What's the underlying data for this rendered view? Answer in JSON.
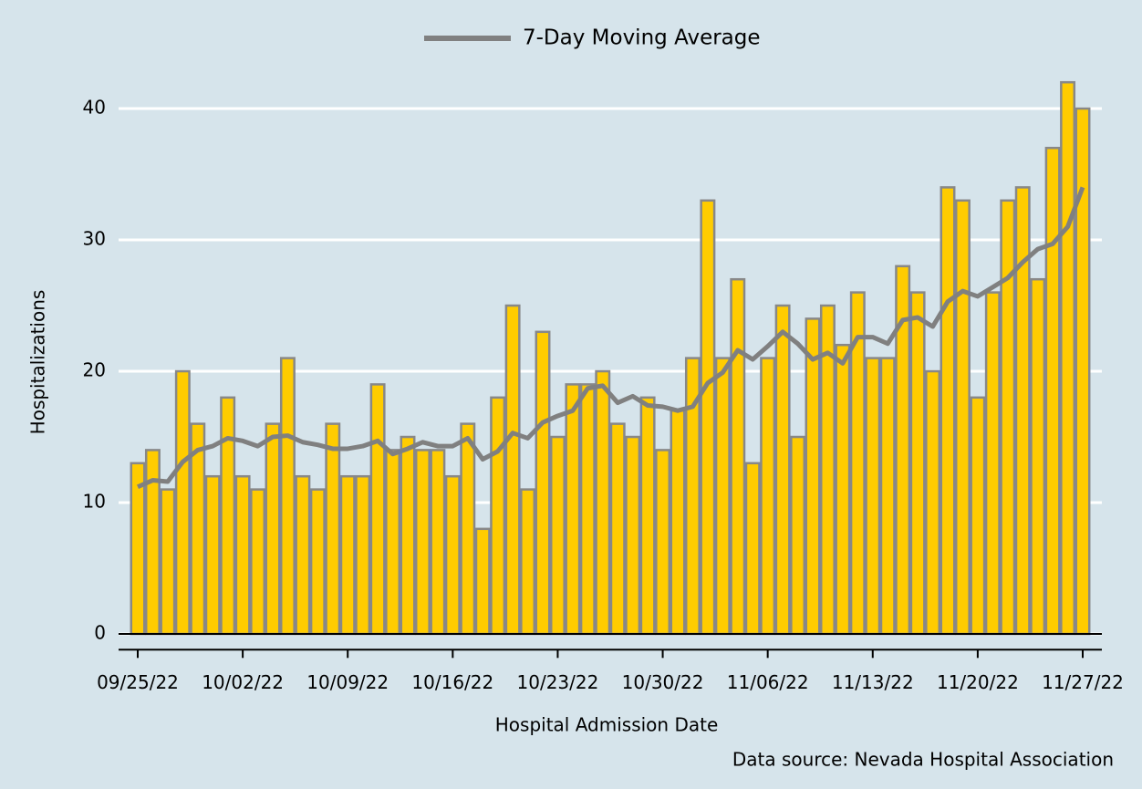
{
  "chart_data": {
    "type": "bar",
    "y_label": "Hospitalizations",
    "x_label": "Hospital Admission Date",
    "source": "Data source: Nevada Hospital Association",
    "categories": [
      "09/25/22",
      null,
      null,
      null,
      null,
      null,
      null,
      "10/02/22",
      null,
      null,
      null,
      null,
      null,
      null,
      "10/09/22",
      null,
      null,
      null,
      null,
      null,
      null,
      "10/16/22",
      null,
      null,
      null,
      null,
      null,
      null,
      "10/23/22",
      null,
      null,
      null,
      null,
      null,
      null,
      "10/30/22",
      null,
      null,
      null,
      null,
      null,
      null,
      "11/06/22",
      null,
      null,
      null,
      null,
      null,
      null,
      "11/13/22",
      null,
      null,
      null,
      null,
      null,
      null,
      "11/20/22",
      null,
      null,
      null,
      null,
      null,
      null,
      "11/27/22"
    ],
    "values": [
      13,
      14,
      11,
      20,
      16,
      12,
      18,
      12,
      11,
      16,
      21,
      12,
      11,
      16,
      12,
      12,
      19,
      14,
      15,
      14,
      14,
      12,
      16,
      8,
      18,
      25,
      11,
      23,
      15,
      19,
      19,
      20,
      16,
      15,
      18,
      14,
      17,
      21,
      33,
      21,
      27,
      13,
      21,
      25,
      15,
      24,
      25,
      22,
      26,
      21,
      21,
      28,
      26,
      20,
      34,
      33,
      18,
      26,
      33,
      34,
      27,
      37,
      42,
      40
    ],
    "color": "#ffcc00",
    "edge_color": "#888888",
    "line": {
      "type": "line",
      "name": "7-Day Moving Average",
      "color": "#808080",
      "values": [
        11.2,
        11.7,
        11.6,
        13.1,
        14.0,
        14.3,
        14.9,
        14.7,
        14.3,
        15.0,
        15.1,
        14.6,
        14.4,
        14.1,
        14.1,
        14.3,
        14.7,
        13.7,
        14.1,
        14.6,
        14.3,
        14.3,
        14.9,
        13.3,
        13.9,
        15.3,
        14.9,
        16.1,
        16.6,
        17.0,
        18.7,
        18.9,
        17.6,
        18.1,
        17.4,
        17.3,
        17.0,
        17.3,
        19.1,
        19.9,
        21.6,
        20.9,
        21.9,
        23.0,
        22.1,
        20.9,
        21.4,
        20.6,
        22.6,
        22.6,
        22.1,
        23.9,
        24.1,
        23.4,
        25.3,
        26.1,
        25.7,
        26.4,
        27.1,
        28.3,
        29.3,
        29.7,
        31.0,
        34.0
      ]
    },
    "ylim": [
      -1.2,
      43.5
    ],
    "yticks": [
      0,
      10,
      20,
      30,
      40
    ],
    "grid": true,
    "legend": "top"
  }
}
